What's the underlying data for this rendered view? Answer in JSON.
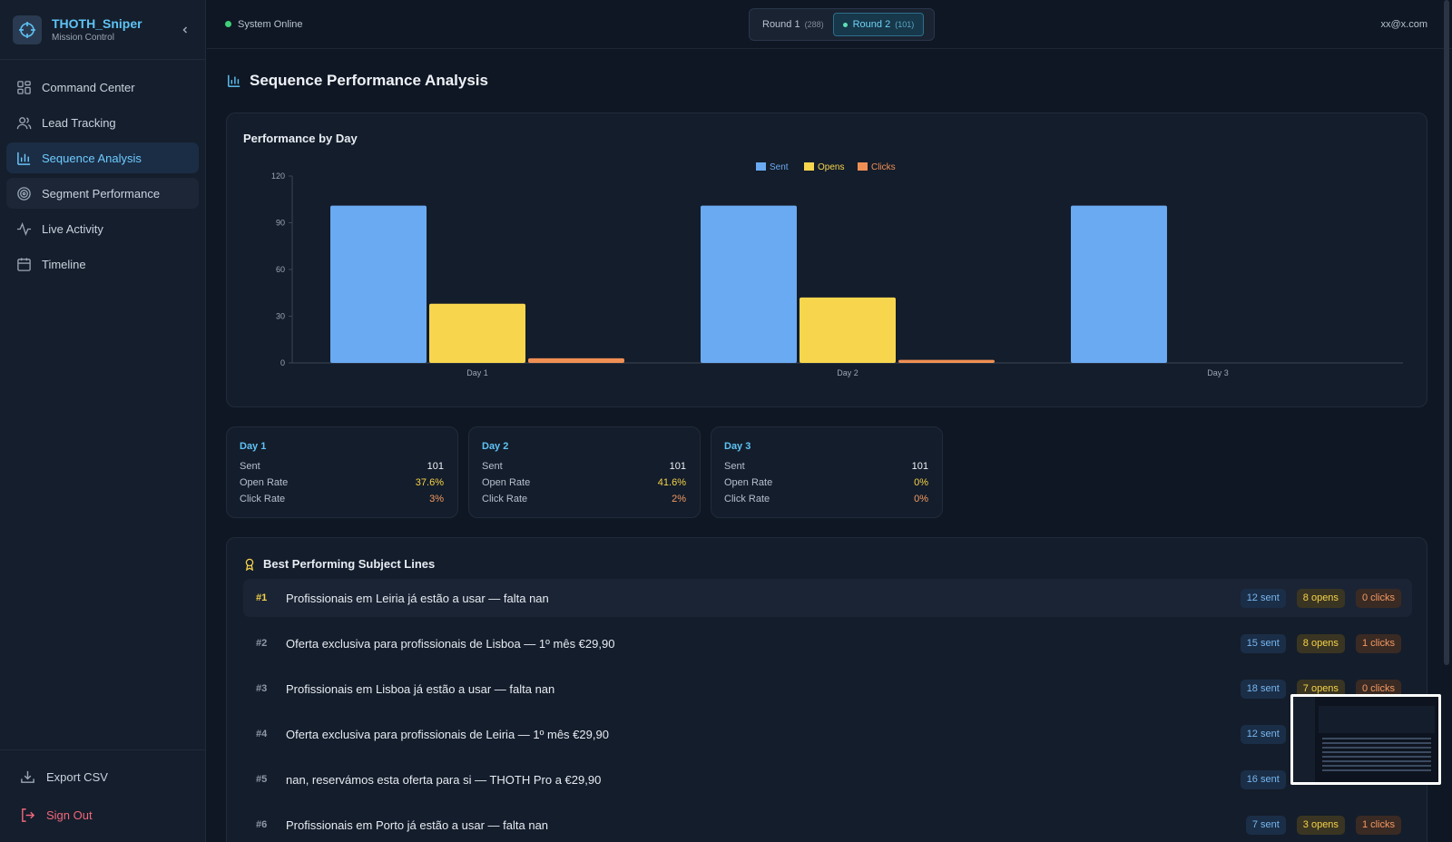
{
  "brand": {
    "title": "THOTH_Sniper",
    "subtitle": "Mission Control"
  },
  "nav": [
    {
      "label": "Command Center",
      "icon": "grid-icon"
    },
    {
      "label": "Lead Tracking",
      "icon": "users-icon"
    },
    {
      "label": "Sequence Analysis",
      "icon": "bar-chart-icon",
      "active": true
    },
    {
      "label": "Segment Performance",
      "icon": "target-icon"
    },
    {
      "label": "Live Activity",
      "icon": "activity-icon"
    },
    {
      "label": "Timeline",
      "icon": "calendar-icon"
    }
  ],
  "sidebar_bottom": {
    "export": "Export CSV",
    "signout": "Sign Out"
  },
  "topbar": {
    "status": "System Online",
    "rounds": [
      {
        "label": "Round 1",
        "count": "(288)"
      },
      {
        "label": "Round 2",
        "count": "(101)",
        "active": true
      }
    ],
    "user": "xx@x.com"
  },
  "page": {
    "title": "Sequence Performance Analysis"
  },
  "chart_card": {
    "title": "Performance by Day"
  },
  "chart_data": {
    "type": "bar",
    "categories": [
      "Day 1",
      "Day 2",
      "Day 3"
    ],
    "series": [
      {
        "name": "Sent",
        "values": [
          101,
          101,
          101
        ],
        "color": "#6aaaf2"
      },
      {
        "name": "Opens",
        "values": [
          38,
          42,
          0
        ],
        "color": "#f7d64e"
      },
      {
        "name": "Clicks",
        "values": [
          3,
          2,
          0
        ],
        "color": "#f08f54"
      }
    ],
    "ylim": [
      0,
      120
    ],
    "yticks": [
      0,
      30,
      60,
      90,
      120
    ],
    "legend": "top-center",
    "grid": false
  },
  "day_cards": [
    {
      "title": "Day 1",
      "sent_label": "Sent",
      "sent": "101",
      "open_label": "Open Rate",
      "open": "37.6%",
      "click_label": "Click Rate",
      "click": "3%"
    },
    {
      "title": "Day 2",
      "sent_label": "Sent",
      "sent": "101",
      "open_label": "Open Rate",
      "open": "41.6%",
      "click_label": "Click Rate",
      "click": "2%"
    },
    {
      "title": "Day 3",
      "sent_label": "Sent",
      "sent": "101",
      "open_label": "Open Rate",
      "open": "0%",
      "click_label": "Click Rate",
      "click": "0%"
    }
  ],
  "subjects": {
    "title": "Best Performing Subject Lines",
    "rows": [
      {
        "rank": "#1",
        "text": "Profissionais em Leiria já estão a usar — falta nan",
        "sent": "12 sent",
        "opens": "8 opens",
        "clicks": "0 clicks"
      },
      {
        "rank": "#2",
        "text": "Oferta exclusiva para profissionais de Lisboa — 1º mês €29,90",
        "sent": "15 sent",
        "opens": "8 opens",
        "clicks": "1 clicks"
      },
      {
        "rank": "#3",
        "text": "Profissionais em Lisboa já estão a usar — falta nan",
        "sent": "18 sent",
        "opens": "7 opens",
        "clicks": "0 clicks"
      },
      {
        "rank": "#4",
        "text": "Oferta exclusiva para profissionais de Leiria — 1º mês €29,90",
        "sent": "12 sent",
        "opens": "",
        "clicks": ""
      },
      {
        "rank": "#5",
        "text": "nan, reservámos esta oferta para si — THOTH Pro a €29,90",
        "sent": "16 sent",
        "opens": "",
        "clicks": ""
      },
      {
        "rank": "#6",
        "text": "Profissionais em Porto já estão a usar — falta nan",
        "sent": "7 sent",
        "opens": "3 opens",
        "clicks": "1 clicks"
      }
    ]
  }
}
